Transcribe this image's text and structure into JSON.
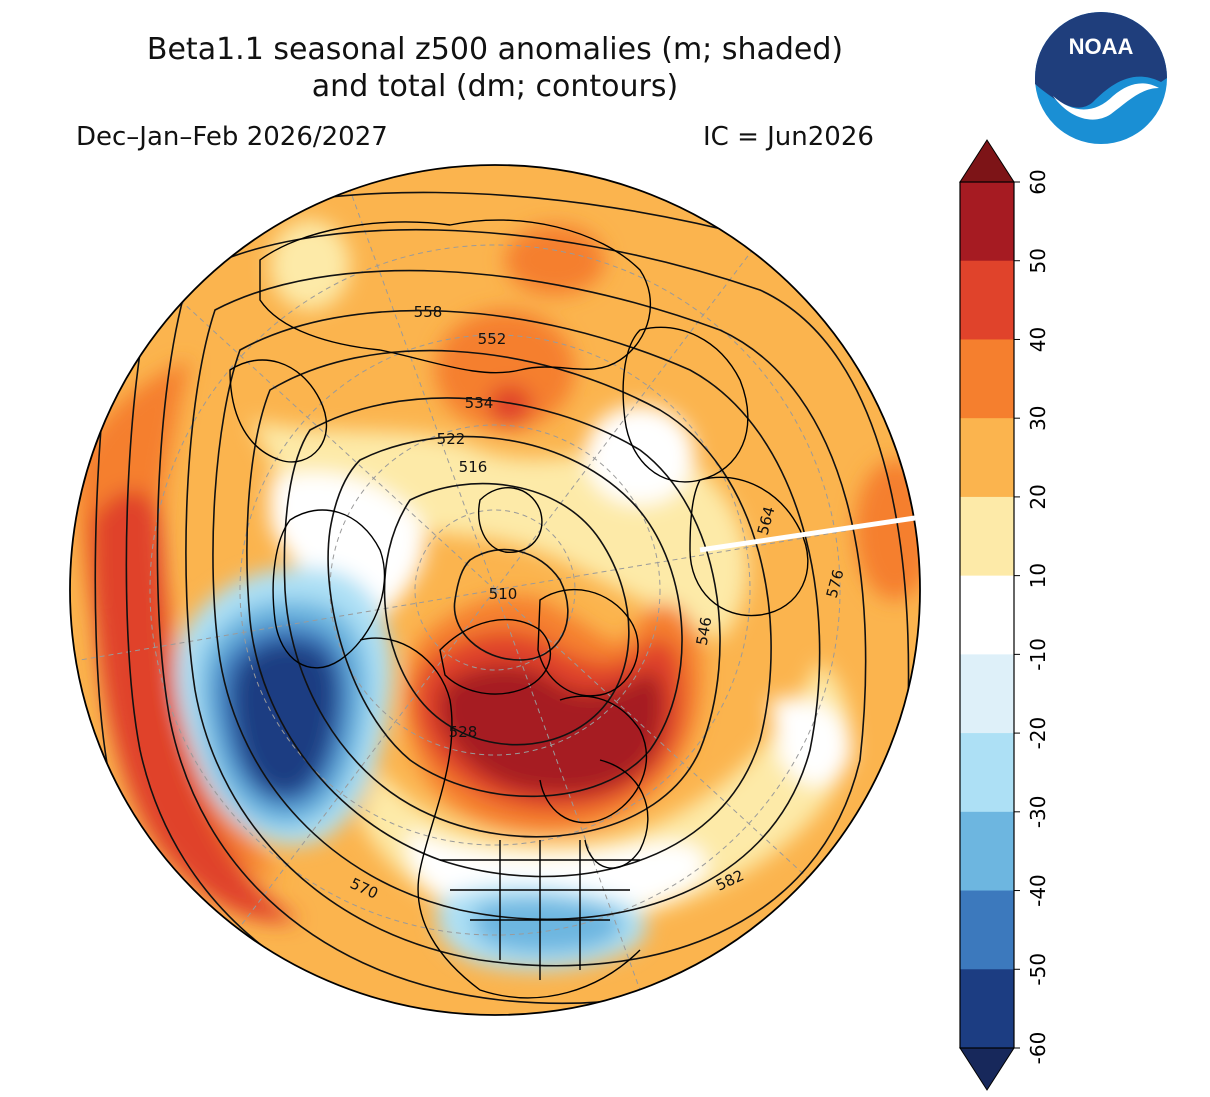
{
  "title": {
    "line1": "Beta1.1 seasonal z500 anomalies (m; shaded)",
    "line2": "and total (dm; contours)"
  },
  "season": "Dec–Jan–Feb 2026/2027",
  "initial_condition": "IC = Jun2026",
  "logo": {
    "text": "NOAA",
    "colors": {
      "navy": "#1f3e7c",
      "sky": "#1a8fd4"
    }
  },
  "colorbar": {
    "ticks": [
      "60",
      "50",
      "40",
      "30",
      "20",
      "10",
      "-10",
      "-20",
      "-30",
      "-40",
      "-50",
      "-60"
    ],
    "levels": [
      {
        "from": 50,
        "to": 60,
        "color": "#a61b22"
      },
      {
        "from": 40,
        "to": 50,
        "color": "#e0432b"
      },
      {
        "from": 30,
        "to": 40,
        "color": "#f57f2e"
      },
      {
        "from": 20,
        "to": 30,
        "color": "#fbb44e"
      },
      {
        "from": 10,
        "to": 20,
        "color": "#fdeaa8"
      },
      {
        "from": -10,
        "to": 10,
        "color": "#ffffff"
      },
      {
        "from": -20,
        "to": -10,
        "color": "#def0f9"
      },
      {
        "from": -30,
        "to": -20,
        "color": "#ade0f5"
      },
      {
        "from": -40,
        "to": -30,
        "color": "#6db6e0"
      },
      {
        "from": -50,
        "to": -40,
        "color": "#3c79bd"
      },
      {
        "from": -60,
        "to": -50,
        "color": "#1c3d82"
      }
    ],
    "over_color": "#7d1417",
    "under_color": "#17285b"
  },
  "contour_labels": [
    "558",
    "552",
    "534",
    "522",
    "516",
    "510",
    "528",
    "546",
    "564",
    "576",
    "582",
    "570"
  ]
}
